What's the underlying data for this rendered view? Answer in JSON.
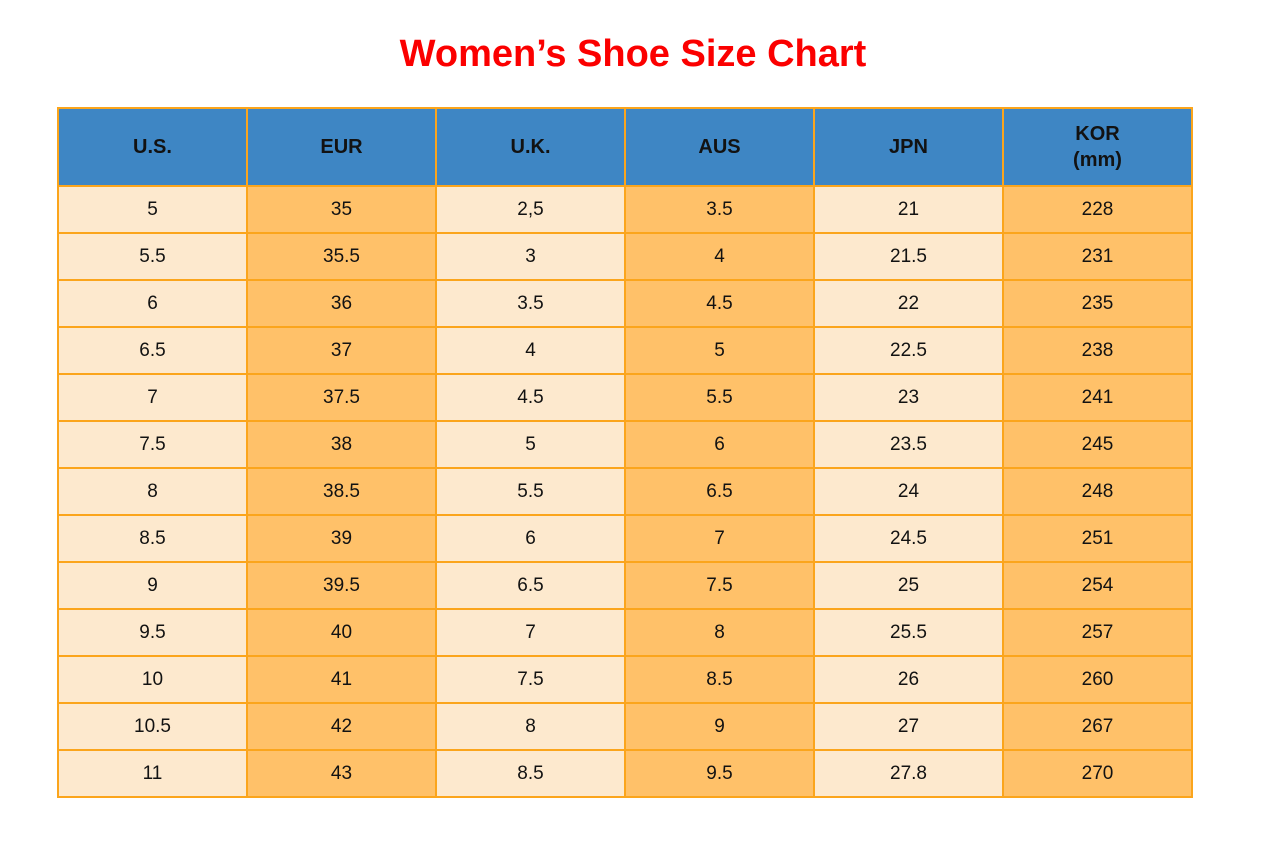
{
  "page": {
    "title": "Women’s Shoe Size Chart"
  },
  "colors": {
    "title_red": "#FB0000",
    "header_blue": "#3E86C4",
    "cell_cream": "#FDE9CE",
    "cell_orange": "#FFC169",
    "border_orange": "#FBA51C",
    "text": "#121212"
  },
  "chart_data": {
    "type": "table",
    "title": "Women’s Shoe Size Chart",
    "columns": [
      {
        "key": "us",
        "label": "U.S.",
        "sublabel": "",
        "shade": "cream"
      },
      {
        "key": "eur",
        "label": "EUR",
        "sublabel": "",
        "shade": "orange"
      },
      {
        "key": "uk",
        "label": "U.K.",
        "sublabel": "",
        "shade": "cream"
      },
      {
        "key": "aus",
        "label": "AUS",
        "sublabel": "",
        "shade": "orange"
      },
      {
        "key": "jpn",
        "label": "JPN",
        "sublabel": "",
        "shade": "cream"
      },
      {
        "key": "kor",
        "label": "KOR",
        "sublabel": "(mm)",
        "shade": "orange"
      }
    ],
    "rows": [
      [
        "5",
        "35",
        "2,5",
        "3.5",
        "21",
        "228"
      ],
      [
        "5.5",
        "35.5",
        "3",
        "4",
        "21.5",
        "231"
      ],
      [
        "6",
        "36",
        "3.5",
        "4.5",
        "22",
        "235"
      ],
      [
        "6.5",
        "37",
        "4",
        "5",
        "22.5",
        "238"
      ],
      [
        "7",
        "37.5",
        "4.5",
        "5.5",
        "23",
        "241"
      ],
      [
        "7.5",
        "38",
        "5",
        "6",
        "23.5",
        "245"
      ],
      [
        "8",
        "38.5",
        "5.5",
        "6.5",
        "24",
        "248"
      ],
      [
        "8.5",
        "39",
        "6",
        "7",
        "24.5",
        "251"
      ],
      [
        "9",
        "39.5",
        "6.5",
        "7.5",
        "25",
        "254"
      ],
      [
        "9.5",
        "40",
        "7",
        "8",
        "25.5",
        "257"
      ],
      [
        "10",
        "41",
        "7.5",
        "8.5",
        "26",
        "260"
      ],
      [
        "10.5",
        "42",
        "8",
        "9",
        "27",
        "267"
      ],
      [
        "11",
        "43",
        "8.5",
        "9.5",
        "27.8",
        "270"
      ]
    ]
  }
}
